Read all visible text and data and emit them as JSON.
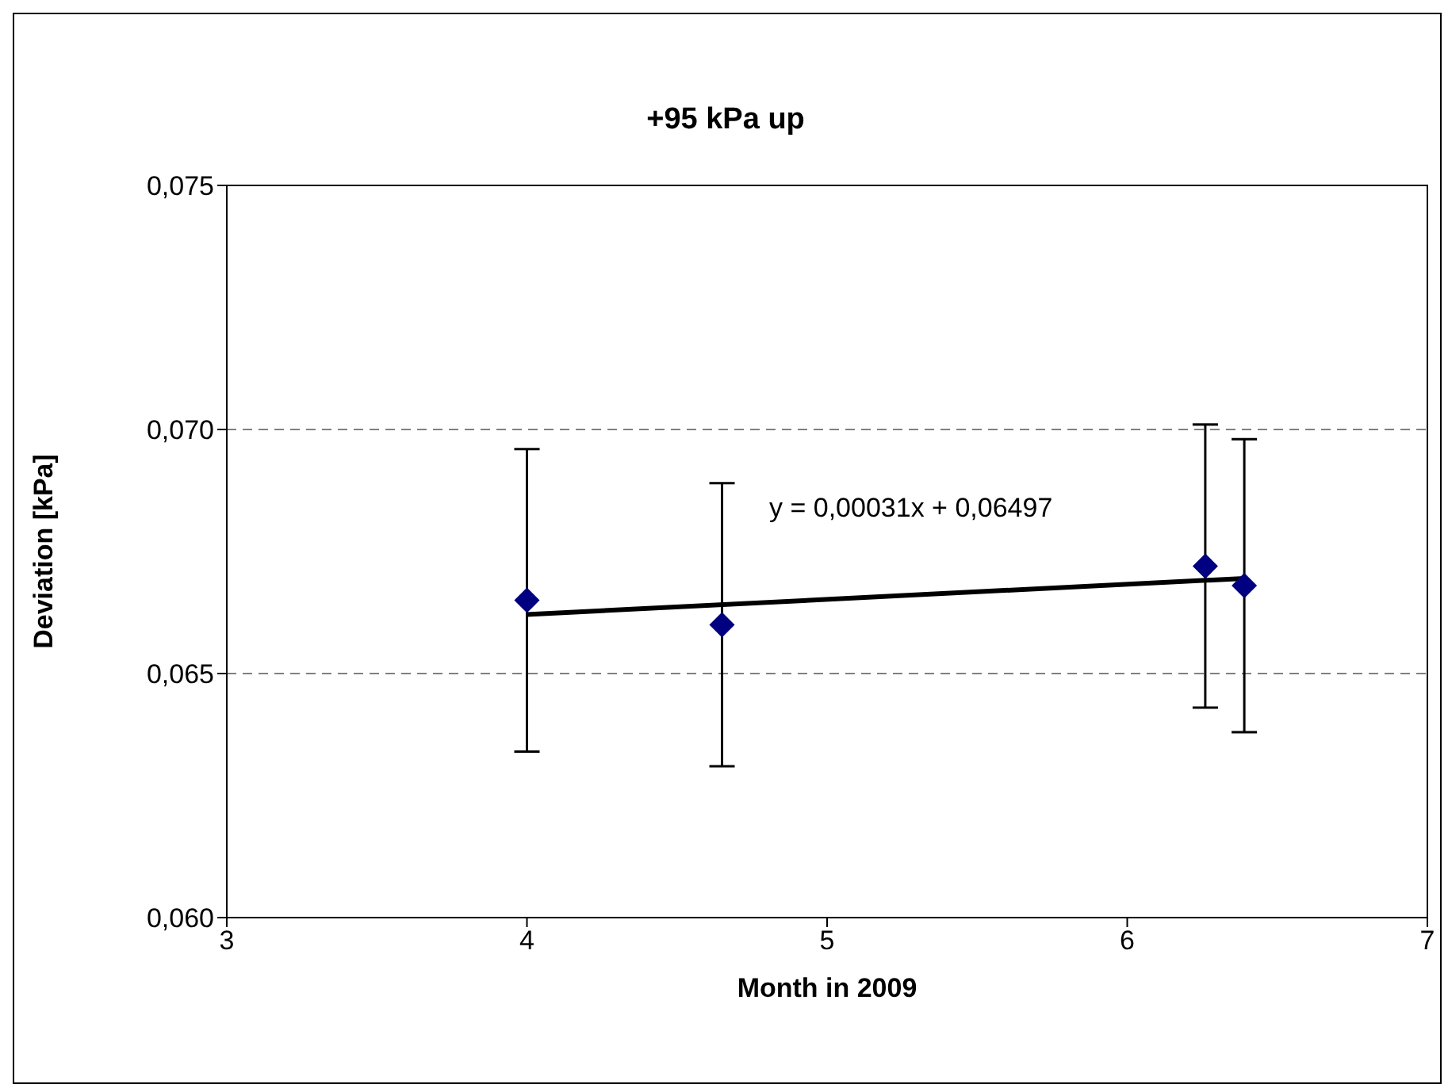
{
  "chart_data": {
    "type": "scatter",
    "title": "+95 kPa up",
    "xlabel": "Month in 2009",
    "ylabel": "Deviation [kPa]",
    "x": [
      4.0,
      4.65,
      6.26,
      6.39
    ],
    "series": [
      {
        "color": "#000080",
        "values": [
          0.0665,
          0.066,
          0.0672,
          0.0668
        ],
        "errors": [
          0.0031,
          0.0029,
          0.0029,
          0.003
        ],
        "marker": "diamond"
      },
      {
        "type": "line",
        "color": "#000000",
        "x": [
          4.0,
          6.39
        ],
        "values": [
          0.06621,
          0.06695
        ],
        "marker": "none",
        "line_style": "solid"
      }
    ],
    "annotations": [
      "y = 0,00031x + 0,06497"
    ],
    "xlim": [
      3,
      7
    ],
    "xticks": [
      3,
      4,
      5,
      6,
      7
    ],
    "ylim": [
      0.06,
      0.075
    ],
    "yticks": [
      {
        "value": 0.06,
        "label": "0,060"
      },
      {
        "value": 0.065,
        "label": "0,065"
      },
      {
        "value": 0.07,
        "label": "0,070"
      },
      {
        "value": 0.075,
        "label": "0,075"
      }
    ],
    "grid": "y",
    "legend": false
  }
}
